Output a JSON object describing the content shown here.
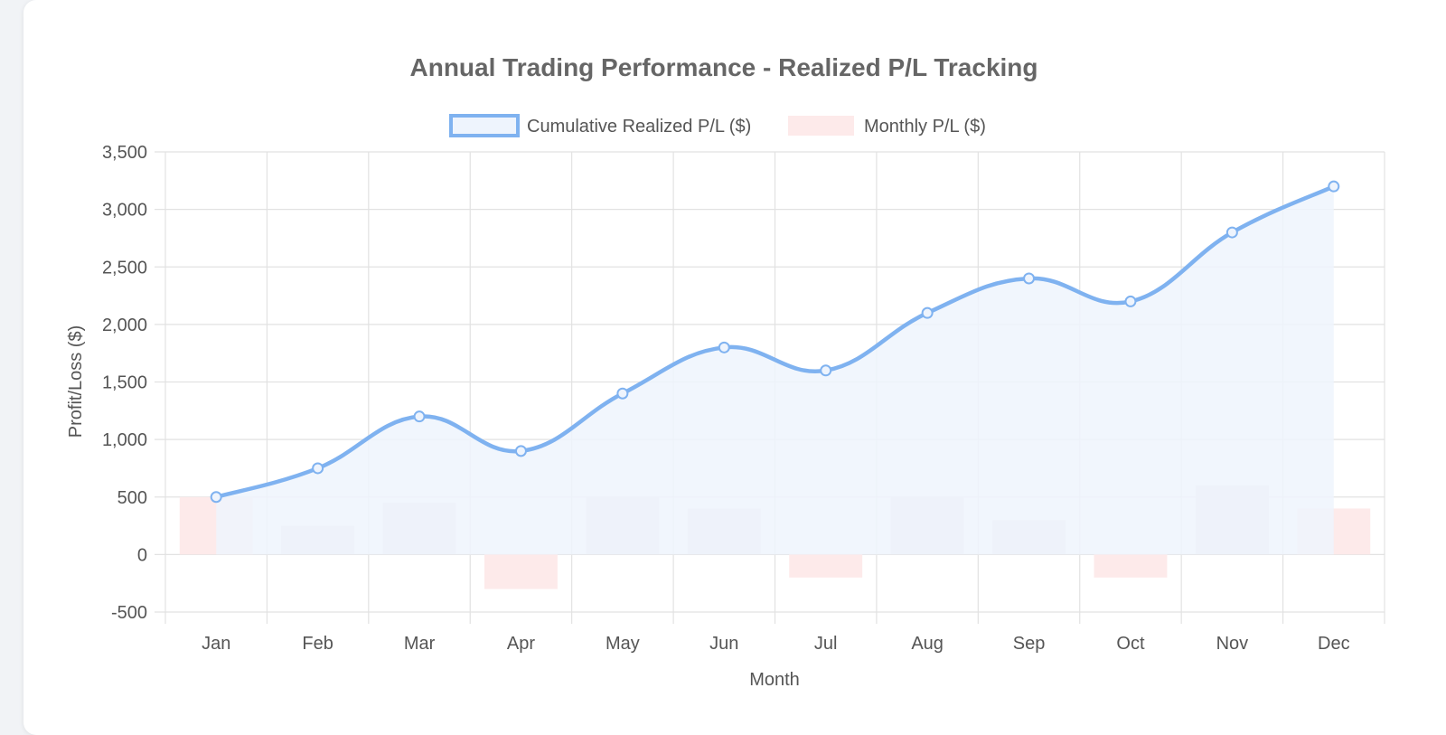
{
  "chart_data": {
    "type": "bar",
    "title": "Annual Trading Performance - Realized P/L Tracking",
    "xlabel": "Month",
    "ylabel": "Profit/Loss ($)",
    "ylim": [
      -500,
      3500
    ],
    "ytick_step": 500,
    "grid": true,
    "legend_position": "top-center",
    "categories": [
      "Jan",
      "Feb",
      "Mar",
      "Apr",
      "May",
      "Jun",
      "Jul",
      "Aug",
      "Sep",
      "Oct",
      "Nov",
      "Dec"
    ],
    "series": [
      {
        "name": "Cumulative Realized P/L ($)",
        "type": "line",
        "color": "#7fb2f0",
        "fill": "#eef4fd",
        "values": [
          500,
          750,
          1200,
          900,
          1400,
          1800,
          1600,
          2100,
          2400,
          2200,
          2800,
          3200
        ]
      },
      {
        "name": "Monthly P/L ($)",
        "type": "bar",
        "color": "#fdeaea",
        "values": [
          500,
          250,
          450,
          -300,
          500,
          400,
          -200,
          500,
          300,
          -200,
          600,
          400
        ]
      }
    ],
    "colors": {
      "grid": "#e2e2e2",
      "bar_overlap": "#ece4e8"
    }
  }
}
